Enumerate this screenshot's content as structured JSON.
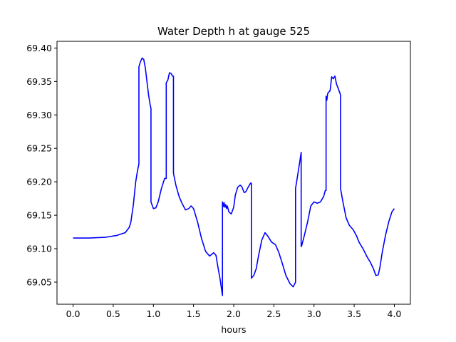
{
  "chart_data": {
    "type": "line",
    "title": "Water Depth h at gauge 525",
    "xlabel": "hours",
    "ylabel": "",
    "xlim": [
      -0.2,
      4.2
    ],
    "ylim": [
      69.017,
      69.41
    ],
    "x_ticks": [
      0.0,
      0.5,
      1.0,
      1.5,
      2.0,
      2.5,
      3.0,
      3.5,
      4.0
    ],
    "x_tick_labels": [
      "0.0",
      "0.5",
      "1.0",
      "1.5",
      "2.0",
      "2.5",
      "3.0",
      "3.5",
      "4.0"
    ],
    "y_ticks": [
      69.05,
      69.1,
      69.15,
      69.2,
      69.25,
      69.3,
      69.35,
      69.4
    ],
    "y_tick_labels": [
      "69.05",
      "69.10",
      "69.15",
      "69.20",
      "69.25",
      "69.30",
      "69.35",
      "69.40"
    ],
    "grid": false,
    "legend": "none",
    "series": [
      {
        "color": "#0000ff",
        "x": [
          0.0,
          0.2,
          0.4,
          0.55,
          0.65,
          0.7,
          0.72,
          0.75,
          0.78,
          0.8,
          0.82,
          0.82,
          0.84,
          0.86,
          0.88,
          0.9,
          0.92,
          0.94,
          0.96,
          0.97,
          0.97,
          1.0,
          1.03,
          1.06,
          1.1,
          1.14,
          1.16,
          1.16,
          1.18,
          1.2,
          1.22,
          1.24,
          1.25,
          1.25,
          1.28,
          1.32,
          1.36,
          1.4,
          1.44,
          1.47,
          1.5,
          1.55,
          1.6,
          1.65,
          1.7,
          1.75,
          1.78,
          1.8,
          1.83,
          1.86,
          1.86,
          1.87,
          1.88,
          1.89,
          1.9,
          1.91,
          1.92,
          1.94,
          1.97,
          2.0,
          2.02,
          2.05,
          2.08,
          2.1,
          2.13,
          2.15,
          2.18,
          2.21,
          2.22,
          2.22,
          2.25,
          2.28,
          2.31,
          2.35,
          2.39,
          2.43,
          2.47,
          2.52,
          2.56,
          2.6,
          2.65,
          2.7,
          2.74,
          2.77,
          2.77,
          2.79,
          2.82,
          2.84,
          2.84,
          2.85,
          2.88,
          2.92,
          2.96,
          3.0,
          3.04,
          3.08,
          3.12,
          3.14,
          3.15,
          3.15,
          3.16,
          3.17,
          3.19,
          3.2,
          3.22,
          3.24,
          3.26,
          3.28,
          3.3,
          3.33,
          3.33,
          3.36,
          3.4,
          3.44,
          3.49,
          3.53,
          3.56,
          3.61,
          3.66,
          3.7,
          3.74,
          3.77,
          3.8,
          3.82,
          3.85,
          3.89,
          3.93,
          3.97,
          4.0
        ],
        "y": [
          69.116,
          69.116,
          69.117,
          69.12,
          69.124,
          69.132,
          69.14,
          69.165,
          69.2,
          69.215,
          69.227,
          69.372,
          69.38,
          69.385,
          69.383,
          69.37,
          69.35,
          69.33,
          69.315,
          69.31,
          69.17,
          69.16,
          69.161,
          69.17,
          69.19,
          69.205,
          69.205,
          69.348,
          69.352,
          69.363,
          69.362,
          69.358,
          69.358,
          69.213,
          69.195,
          69.178,
          69.167,
          69.158,
          69.16,
          69.164,
          69.16,
          69.14,
          69.115,
          69.096,
          69.089,
          69.094,
          69.09,
          69.075,
          69.055,
          69.03,
          69.17,
          69.163,
          69.169,
          69.162,
          69.166,
          69.16,
          69.164,
          69.155,
          69.152,
          69.162,
          69.18,
          69.192,
          69.195,
          69.193,
          69.184,
          69.185,
          69.192,
          69.198,
          69.198,
          69.056,
          69.06,
          69.07,
          69.09,
          69.113,
          69.124,
          69.118,
          69.11,
          69.106,
          69.095,
          69.08,
          69.06,
          69.048,
          69.043,
          69.05,
          69.19,
          69.205,
          69.228,
          69.244,
          69.103,
          69.106,
          69.12,
          69.14,
          69.164,
          69.17,
          69.168,
          69.17,
          69.178,
          69.187,
          69.187,
          69.328,
          69.322,
          69.332,
          69.335,
          69.336,
          69.357,
          69.354,
          69.358,
          69.346,
          69.34,
          69.33,
          69.19,
          69.17,
          69.146,
          69.135,
          69.128,
          69.119,
          69.11,
          69.1,
          69.088,
          69.08,
          69.07,
          69.06,
          69.061,
          69.072,
          69.095,
          69.12,
          69.14,
          69.155,
          69.16
        ]
      }
    ]
  }
}
